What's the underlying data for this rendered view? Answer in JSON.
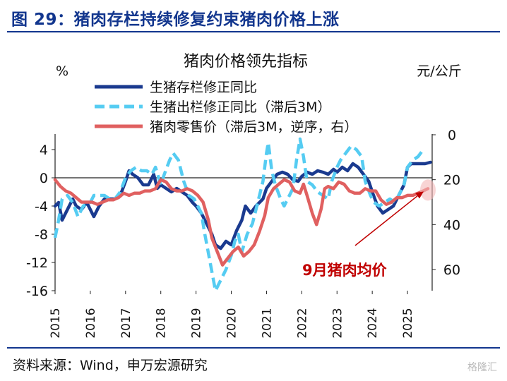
{
  "figure": {
    "title": "图 29：猪肉存栏持续修复约束猪肉价格上涨",
    "source": "资料来源：Wind，申万宏源研究",
    "watermark": "格隆汇"
  },
  "chart_data": {
    "type": "line",
    "title": "猪肉价格领先指标",
    "y_left_unit": "%",
    "y_right_unit": "元/公斤",
    "y_left_range": [
      -16,
      6
    ],
    "y_left_ticks": [
      4,
      0,
      -4,
      -8,
      -12,
      -16
    ],
    "y_right_range": [
      60,
      -10
    ],
    "y_right_inverted": true,
    "y_right_ticks": [
      0,
      20,
      40,
      60
    ],
    "x_range": [
      2015.0,
      2025.7
    ],
    "x_ticks": [
      "2015",
      "2016",
      "2017",
      "2018",
      "2019",
      "2020",
      "2021",
      "2022",
      "2023",
      "2024",
      "2025"
    ],
    "annotation": {
      "text": "9月猪肉均价",
      "color": "#c00000"
    },
    "series": [
      {
        "name": "生猪存栏修正同比",
        "axis": "left",
        "color": "#1a3a8f",
        "style": "solid",
        "points": [
          [
            2015.0,
            -4.0
          ],
          [
            2015.1,
            -3.5
          ],
          [
            2015.2,
            -6.0
          ],
          [
            2015.35,
            -4.5
          ],
          [
            2015.5,
            -3.0
          ],
          [
            2015.6,
            -4.0
          ],
          [
            2015.75,
            -4.5
          ],
          [
            2015.9,
            -3.5
          ],
          [
            2016.0,
            -4.5
          ],
          [
            2016.1,
            -5.5
          ],
          [
            2016.25,
            -4.0
          ],
          [
            2016.4,
            -3.0
          ],
          [
            2016.55,
            -3.0
          ],
          [
            2016.7,
            -3.0
          ],
          [
            2016.85,
            -2.5
          ],
          [
            2017.0,
            -0.5
          ],
          [
            2017.1,
            1.0
          ],
          [
            2017.2,
            0.5
          ],
          [
            2017.35,
            0.0
          ],
          [
            2017.5,
            -1.0
          ],
          [
            2017.65,
            -1.0
          ],
          [
            2017.8,
            0.5
          ],
          [
            2017.9,
            -1.5
          ],
          [
            2018.0,
            -1.0
          ],
          [
            2018.15,
            -1.5
          ],
          [
            2018.3,
            -2.0
          ],
          [
            2018.45,
            -1.5
          ],
          [
            2018.6,
            -2.0
          ],
          [
            2018.75,
            -2.5
          ],
          [
            2018.9,
            -3.5
          ],
          [
            2019.0,
            -4.0
          ],
          [
            2019.15,
            -5.0
          ],
          [
            2019.3,
            -6.5
          ],
          [
            2019.45,
            -8.0
          ],
          [
            2019.55,
            -9.5
          ],
          [
            2019.7,
            -10.0
          ],
          [
            2019.85,
            -9.0
          ],
          [
            2020.0,
            -9.5
          ],
          [
            2020.15,
            -7.5
          ],
          [
            2020.3,
            -6.0
          ],
          [
            2020.4,
            -4.0
          ],
          [
            2020.55,
            -5.0
          ],
          [
            2020.7,
            -4.0
          ],
          [
            2020.9,
            -3.0
          ],
          [
            2021.0,
            -1.5
          ],
          [
            2021.15,
            -0.5
          ],
          [
            2021.3,
            0.5
          ],
          [
            2021.45,
            0.8
          ],
          [
            2021.6,
            0.5
          ],
          [
            2021.75,
            -0.3
          ],
          [
            2021.9,
            -0.5
          ],
          [
            2022.0,
            0.2
          ],
          [
            2022.15,
            0.8
          ],
          [
            2022.3,
            0.5
          ],
          [
            2022.45,
            1.0
          ],
          [
            2022.6,
            0.8
          ],
          [
            2022.75,
            0.5
          ],
          [
            2022.9,
            1.2
          ],
          [
            2023.0,
            0.8
          ],
          [
            2023.15,
            1.5
          ],
          [
            2023.3,
            1.0
          ],
          [
            2023.45,
            2.0
          ],
          [
            2023.6,
            1.5
          ],
          [
            2023.75,
            0.5
          ],
          [
            2023.9,
            -0.5
          ],
          [
            2024.0,
            -2.0
          ],
          [
            2024.15,
            -4.0
          ],
          [
            2024.3,
            -5.0
          ],
          [
            2024.45,
            -4.5
          ],
          [
            2024.6,
            -4.0
          ],
          [
            2024.75,
            -2.5
          ],
          [
            2024.9,
            -1.0
          ],
          [
            2025.0,
            1.5
          ],
          [
            2025.1,
            2.0
          ],
          [
            2025.3,
            2.0
          ],
          [
            2025.5,
            2.0
          ],
          [
            2025.65,
            2.2
          ]
        ]
      },
      {
        "name": "生猪出栏修正同比（滞后3M）",
        "axis": "left",
        "color": "#55ccf2",
        "style": "dashed",
        "points": [
          [
            2015.0,
            -8.5
          ],
          [
            2015.1,
            -6.0
          ],
          [
            2015.2,
            -3.0
          ],
          [
            2015.35,
            -2.5
          ],
          [
            2015.5,
            -3.5
          ],
          [
            2015.65,
            -5.5
          ],
          [
            2015.8,
            -4.0
          ],
          [
            2016.0,
            -3.5
          ],
          [
            2016.1,
            -2.5
          ],
          [
            2016.25,
            -2.5
          ],
          [
            2016.4,
            -2.5
          ],
          [
            2016.55,
            -3.0
          ],
          [
            2016.7,
            -3.0
          ],
          [
            2016.85,
            -2.0
          ],
          [
            2017.0,
            0.0
          ],
          [
            2017.15,
            1.0
          ],
          [
            2017.3,
            1.5
          ],
          [
            2017.45,
            1.0
          ],
          [
            2017.6,
            1.0
          ],
          [
            2017.75,
            0.5
          ],
          [
            2017.85,
            1.5
          ],
          [
            2018.0,
            -1.0
          ],
          [
            2018.1,
            0.5
          ],
          [
            2018.25,
            2.5
          ],
          [
            2018.35,
            3.5
          ],
          [
            2018.5,
            2.5
          ],
          [
            2018.65,
            -0.5
          ],
          [
            2018.8,
            -2.5
          ],
          [
            2018.95,
            -3.0
          ],
          [
            2019.05,
            -4.0
          ],
          [
            2019.15,
            -5.0
          ],
          [
            2019.25,
            -8.0
          ],
          [
            2019.4,
            -12.0
          ],
          [
            2019.55,
            -16.0
          ],
          [
            2019.7,
            -14.5
          ],
          [
            2019.85,
            -13.0
          ],
          [
            2020.0,
            -11.0
          ],
          [
            2020.1,
            -9.0
          ],
          [
            2020.2,
            -8.0
          ],
          [
            2020.3,
            -10.5
          ],
          [
            2020.45,
            -8.0
          ],
          [
            2020.6,
            -6.5
          ],
          [
            2020.75,
            -3.5
          ],
          [
            2020.9,
            -0.5
          ],
          [
            2021.0,
            3.5
          ],
          [
            2021.05,
            5.0
          ],
          [
            2021.15,
            1.0
          ],
          [
            2021.25,
            -1.0
          ],
          [
            2021.4,
            -3.0
          ],
          [
            2021.5,
            -4.0
          ],
          [
            2021.6,
            -3.0
          ],
          [
            2021.75,
            -1.5
          ],
          [
            2021.85,
            2.5
          ],
          [
            2021.95,
            5.5
          ],
          [
            2022.05,
            3.0
          ],
          [
            2022.15,
            -0.5
          ],
          [
            2022.3,
            -1.0
          ],
          [
            2022.45,
            -2.0
          ],
          [
            2022.6,
            -2.5
          ],
          [
            2022.75,
            -3.0
          ],
          [
            2022.85,
            -0.5
          ],
          [
            2023.0,
            1.5
          ],
          [
            2023.1,
            2.5
          ],
          [
            2023.25,
            3.5
          ],
          [
            2023.4,
            4.5
          ],
          [
            2023.55,
            4.0
          ],
          [
            2023.7,
            3.0
          ],
          [
            2023.8,
            -0.5
          ],
          [
            2023.95,
            -2.5
          ],
          [
            2024.05,
            -3.5
          ],
          [
            2024.2,
            -4.0
          ],
          [
            2024.35,
            -3.5
          ],
          [
            2024.5,
            -3.0
          ],
          [
            2024.65,
            -3.5
          ],
          [
            2024.8,
            -2.0
          ],
          [
            2024.9,
            -1.0
          ],
          [
            2025.0,
            1.5
          ],
          [
            2025.15,
            2.5
          ],
          [
            2025.3,
            3.0
          ],
          [
            2025.45,
            4.0
          ]
        ]
      },
      {
        "name": "猪肉零售价（滞后3M，逆序，右）",
        "axis": "right",
        "color": "#e06060",
        "style": "solid",
        "points": [
          [
            2015.0,
            20
          ],
          [
            2015.15,
            23
          ],
          [
            2015.3,
            25
          ],
          [
            2015.45,
            26
          ],
          [
            2015.6,
            28
          ],
          [
            2015.75,
            30
          ],
          [
            2015.9,
            30
          ],
          [
            2016.05,
            30
          ],
          [
            2016.2,
            31
          ],
          [
            2016.35,
            30
          ],
          [
            2016.5,
            29
          ],
          [
            2016.65,
            29
          ],
          [
            2016.8,
            28
          ],
          [
            2016.95,
            26
          ],
          [
            2017.1,
            27
          ],
          [
            2017.25,
            26
          ],
          [
            2017.4,
            26
          ],
          [
            2017.55,
            25
          ],
          [
            2017.7,
            25
          ],
          [
            2017.85,
            24
          ],
          [
            2018.0,
            20
          ],
          [
            2018.15,
            21
          ],
          [
            2018.3,
            24
          ],
          [
            2018.45,
            25
          ],
          [
            2018.6,
            25
          ],
          [
            2018.75,
            24
          ],
          [
            2018.9,
            25
          ],
          [
            2019.05,
            27
          ],
          [
            2019.2,
            30
          ],
          [
            2019.35,
            38
          ],
          [
            2019.45,
            46
          ],
          [
            2019.6,
            52
          ],
          [
            2019.75,
            58
          ],
          [
            2019.9,
            55
          ],
          [
            2020.05,
            52
          ],
          [
            2020.2,
            50
          ],
          [
            2020.35,
            54
          ],
          [
            2020.5,
            52
          ],
          [
            2020.65,
            49
          ],
          [
            2020.8,
            43
          ],
          [
            2020.95,
            36
          ],
          [
            2021.05,
            28
          ],
          [
            2021.2,
            24
          ],
          [
            2021.35,
            22
          ],
          [
            2021.5,
            20
          ],
          [
            2021.65,
            21
          ],
          [
            2021.8,
            25
          ],
          [
            2021.95,
            26
          ],
          [
            2022.05,
            22
          ],
          [
            2022.15,
            27
          ],
          [
            2022.3,
            35
          ],
          [
            2022.42,
            40
          ],
          [
            2022.55,
            33
          ],
          [
            2022.65,
            24
          ],
          [
            2022.75,
            23
          ],
          [
            2022.9,
            24
          ],
          [
            2023.05,
            21
          ],
          [
            2023.2,
            22
          ],
          [
            2023.35,
            25
          ],
          [
            2023.5,
            26
          ],
          [
            2023.65,
            26
          ],
          [
            2023.8,
            24
          ],
          [
            2023.95,
            25
          ],
          [
            2024.1,
            25
          ],
          [
            2024.25,
            29
          ],
          [
            2024.4,
            31
          ],
          [
            2024.55,
            30
          ],
          [
            2024.7,
            28
          ],
          [
            2024.85,
            28
          ],
          [
            2025.0,
            27
          ],
          [
            2025.15,
            27
          ],
          [
            2025.3,
            26
          ],
          [
            2025.45,
            25
          ],
          [
            2025.58,
            24
          ]
        ]
      }
    ]
  }
}
